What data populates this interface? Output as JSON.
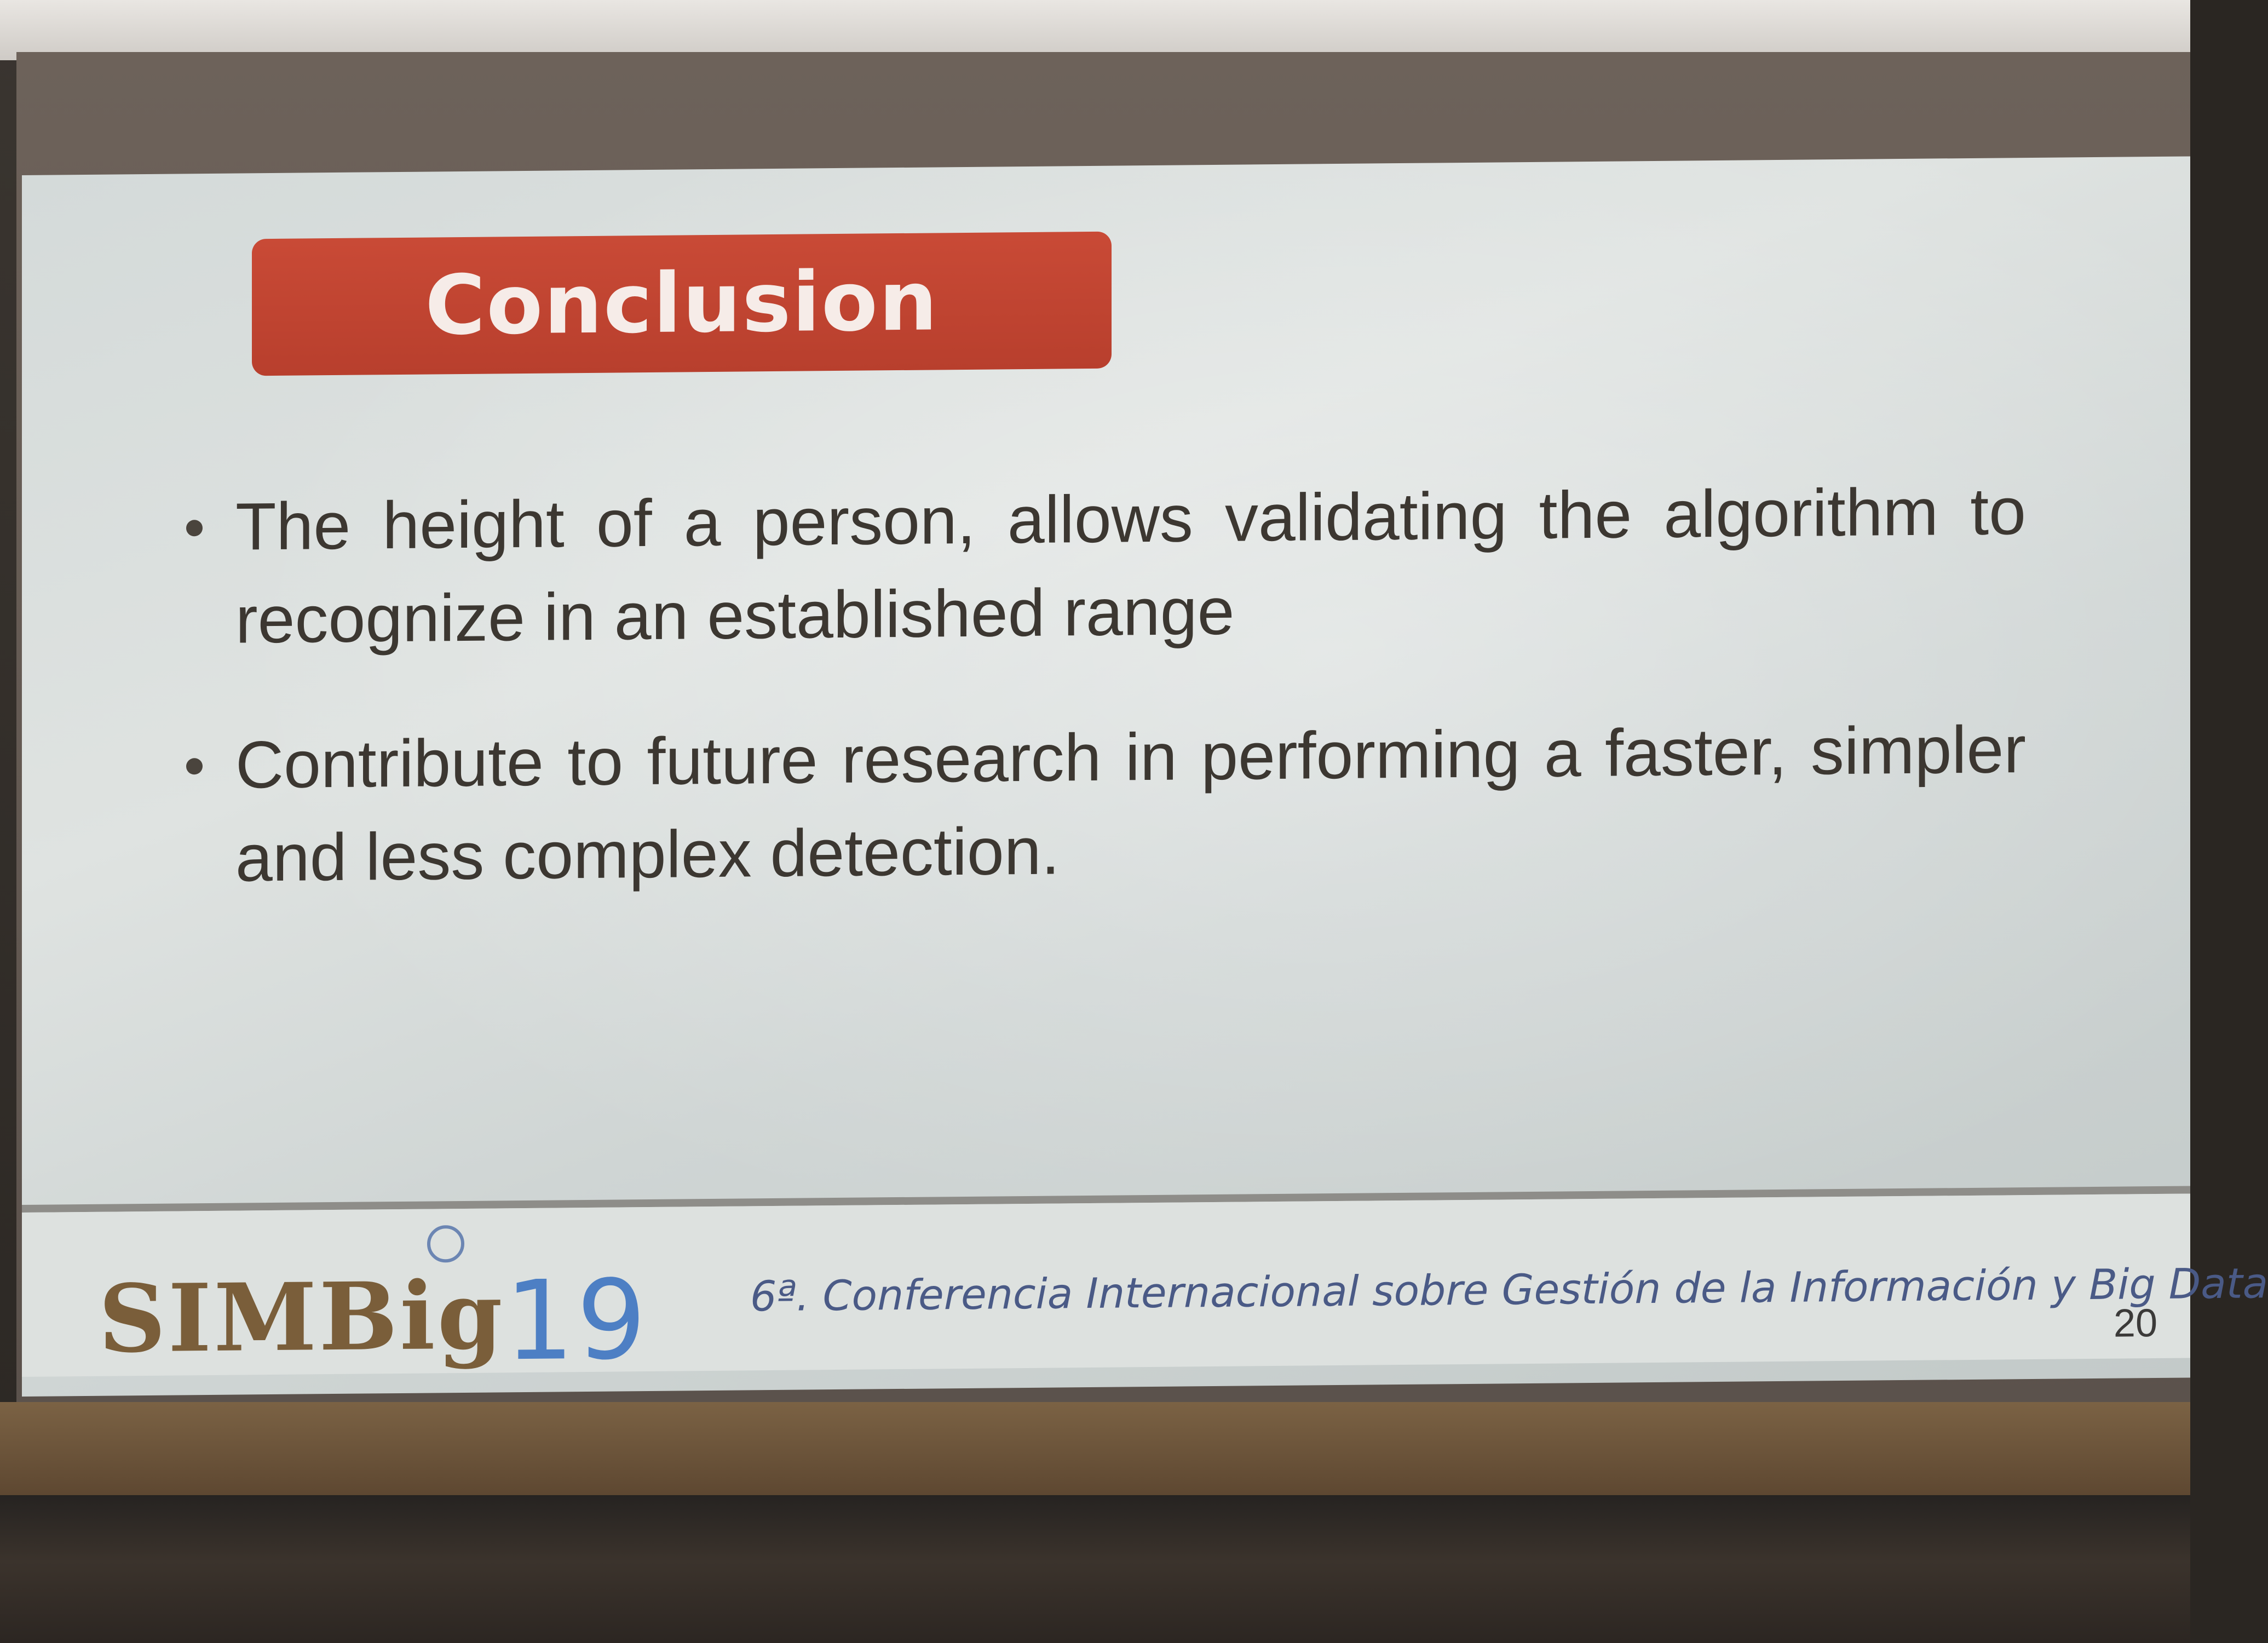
{
  "slide": {
    "title": "Conclusion",
    "bullets": [
      "The height of a person, allows validating the algorithm to recognize in an established range",
      "Contribute to future research in performing a faster, simpler and less complex detection."
    ],
    "footer": {
      "logo_text": "SIMBig",
      "logo_year": "19",
      "conference": "6ª. Conferencia Internacional sobre Gestión de la Información y Big Data",
      "page_number": "20"
    }
  },
  "colors": {
    "title_background": "#c04532",
    "bullet_text": "#3c3731",
    "logo_brown": "#7a5e3a",
    "logo_blue": "#4d7fc4",
    "conference_text": "#4a5a86"
  }
}
